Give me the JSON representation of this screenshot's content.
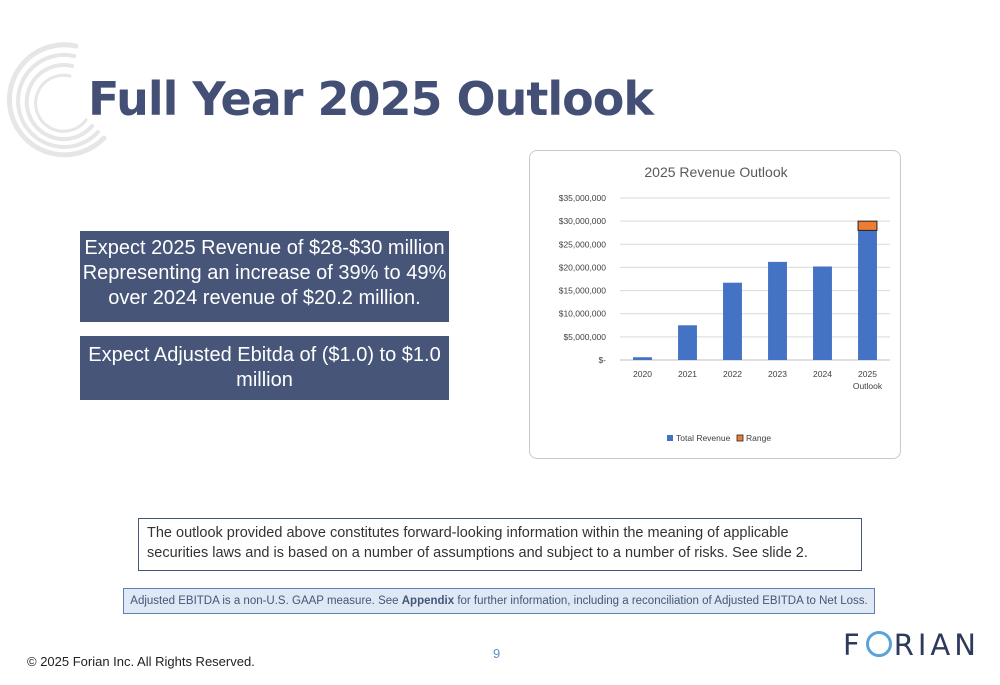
{
  "slide": {
    "title": "Full Year 2025 Outlook",
    "box1_lines": [
      "Expect 2025 Revenue of $28-$30 million",
      "Representing an increase of 39% to 49%",
      "over 2024 revenue of $20.2 million."
    ],
    "box2_lines": [
      "Expect Adjusted Ebitda of ($1.0) to $1.0",
      "million"
    ],
    "disclaimer": "The outlook provided above constitutes forward-looking information within the meaning of applicable securities laws and is based on a number of assumptions and subject to a number of risks. See slide 2.",
    "note_prefix": "Adjusted EBITDA is a non-U.S. GAAP measure. See ",
    "note_link": "Appendix",
    "note_suffix": " for further information, including a reconciliation of Adjusted EBITDA to Net Loss.",
    "copyright": "© 2025 Forian Inc.  All Rights Reserved.",
    "page_number": "9",
    "brand_left": "F",
    "brand_right": "RIAN"
  },
  "colors": {
    "title": "#444f75",
    "box": "#465578",
    "revenue": "#4472c4",
    "range": "#ed7d31"
  },
  "chart_data": {
    "type": "bar",
    "title": "2025 Revenue Outlook",
    "categories": [
      "2020",
      "2021",
      "2022",
      "2023",
      "2024",
      "2025 Outlook"
    ],
    "series": [
      {
        "name": "Total Revenue",
        "values": [
          600000,
          7500000,
          16700000,
          21200000,
          20200000,
          28000000
        ]
      },
      {
        "name": "Range",
        "values": [
          0,
          0,
          0,
          0,
          0,
          2000000
        ]
      }
    ],
    "stacked": true,
    "ylim": [
      0,
      35000000
    ],
    "yticks": [
      "$-",
      "$5,000,000",
      "$10,000,000",
      "$15,000,000",
      "$20,000,000",
      "$25,000,000",
      "$30,000,000",
      "$35,000,000"
    ],
    "grid": true,
    "legend": "bottom"
  }
}
